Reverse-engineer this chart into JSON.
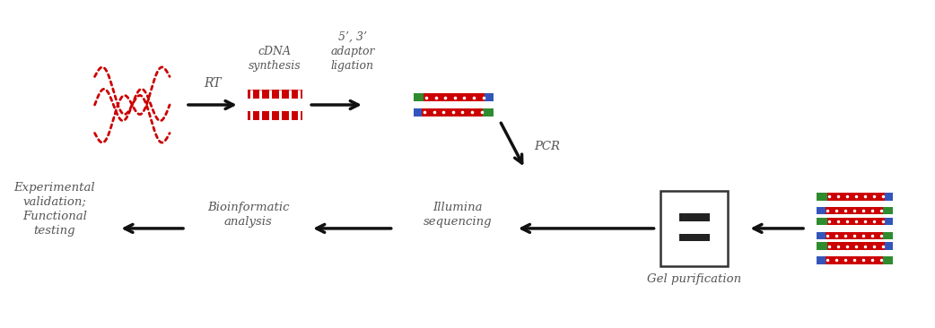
{
  "bg_color": "#ffffff",
  "text_color": "#555555",
  "rna_color": "#cc0000",
  "green_color": "#2e8b2e",
  "blue_color": "#3355bb",
  "red_color": "#cc0000",
  "gel_band": "#222222",
  "gel_border": "#333333",
  "arrow_color": "#111111",
  "labels": {
    "RT": "RT",
    "cDNA": "cDNA\nsynthesis",
    "adaptor": "5’, 3’\nadaptor\nligation",
    "PCR": "PCR",
    "gel": "Gel purification",
    "illumina": "Illumina\nsequencing",
    "bio": "Bioinformatic\nanalysis",
    "exp": "Experimental\nvalidation;\nFunctional\ntesting"
  },
  "figsize": [
    10.42,
    3.66
  ],
  "dpi": 100
}
